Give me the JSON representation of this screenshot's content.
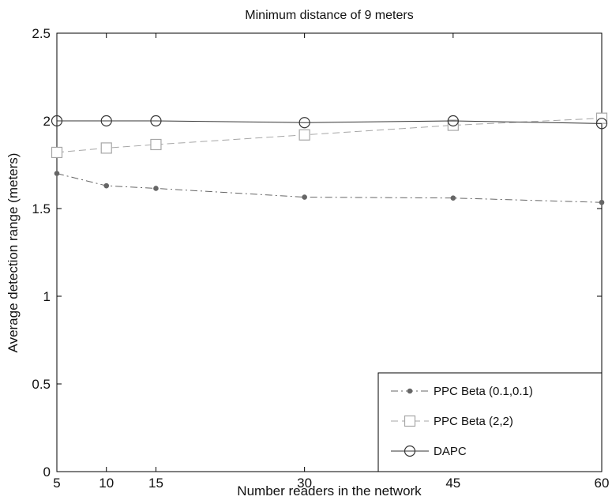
{
  "chart_data": {
    "type": "line",
    "title": "Minimum distance of 9 meters",
    "xlabel": "Number readers in the network",
    "ylabel": "Average detection range (meters)",
    "x": [
      5,
      10,
      15,
      30,
      45,
      60
    ],
    "xticks": [
      "5",
      "10",
      "15",
      "30",
      "45",
      "60"
    ],
    "yticks": [
      "0",
      "0.5",
      "1",
      "1.5",
      "2",
      "2.5"
    ],
    "xlim": [
      5,
      60
    ],
    "ylim": [
      0,
      2.5
    ],
    "grid": false,
    "legend_position": "bottom-right",
    "series": [
      {
        "name": "PPC Beta (0.1,0.1)",
        "values": [
          1.7,
          1.63,
          1.615,
          1.565,
          1.56,
          1.535
        ],
        "color": "#666666",
        "line_style": "dash-dot",
        "marker": "dot"
      },
      {
        "name": "PPC Beta (2,2)",
        "values": [
          1.82,
          1.845,
          1.865,
          1.92,
          1.975,
          2.015
        ],
        "color": "#a6a6a6",
        "line_style": "dashed",
        "marker": "square"
      },
      {
        "name": "DAPC",
        "values": [
          2.0,
          2.0,
          2.0,
          1.99,
          2.0,
          1.985
        ],
        "color": "#333333",
        "line_style": "solid",
        "marker": "circle"
      }
    ]
  }
}
